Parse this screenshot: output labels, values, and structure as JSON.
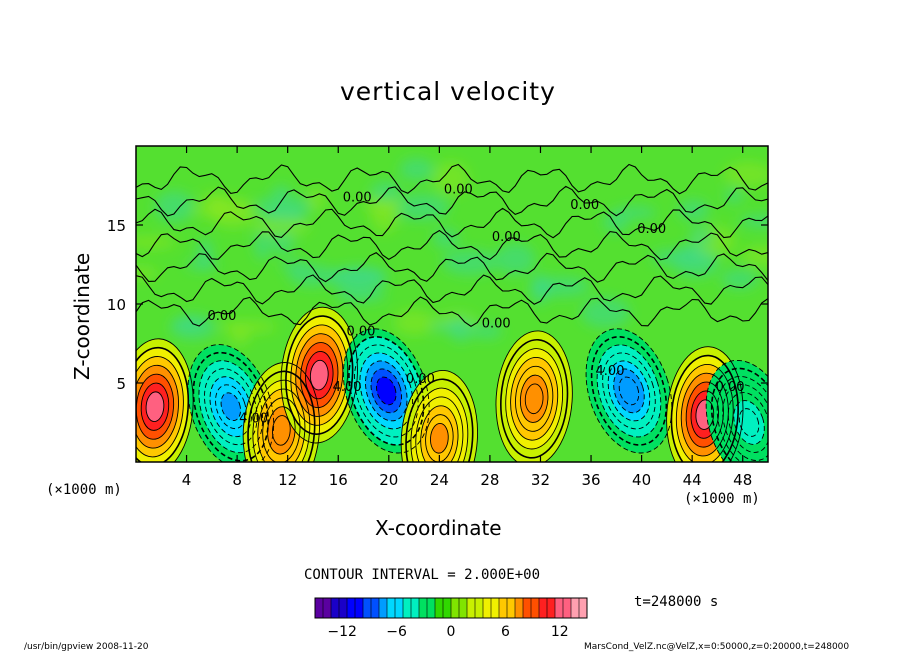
{
  "chart_data": {
    "type": "heatmap",
    "title": "vertical velocity",
    "xlabel": "X-coordinate",
    "ylabel": "Z-coordinate",
    "x_unit": "(×1000 m)",
    "x_unit_right": "(×1000 m)",
    "xlim": [
      0,
      50
    ],
    "ylim": [
      0,
      20
    ],
    "x_ticks": [
      4,
      8,
      12,
      16,
      20,
      24,
      28,
      32,
      36,
      40,
      44,
      48
    ],
    "y_ticks": [
      5,
      10,
      15
    ],
    "contour_interval_text": "CONTOUR INTERVAL = 2.000E+00",
    "time_text": "t=248000 s",
    "colorbar": {
      "range": [
        -15,
        15
      ],
      "ticks": [
        -12,
        -6,
        0,
        6,
        12
      ],
      "tick_labels": [
        "−12",
        "−6",
        "0",
        "6",
        "12"
      ],
      "colors": [
        "#5a00a0",
        "#1a00c8",
        "#0000ff",
        "#0050ff",
        "#009cff",
        "#00d8ff",
        "#00f0c0",
        "#00e060",
        "#30d800",
        "#80e400",
        "#c8f000",
        "#f0f000",
        "#ffc800",
        "#ff9000",
        "#ff5000",
        "#ff2020",
        "#ff6080",
        "#ffa0b0"
      ]
    },
    "features": [
      {
        "type": "updraft",
        "x": 1.5,
        "z": 3.5,
        "peak": 12
      },
      {
        "type": "downdraft",
        "x": 7.5,
        "z": 3.5,
        "peak": -7
      },
      {
        "type": "updraft",
        "x": 11.5,
        "z": 2,
        "peak": 8
      },
      {
        "type": "updraft",
        "x": 14.5,
        "z": 5.5,
        "peak": 12
      },
      {
        "type": "downdraft",
        "x": 19.8,
        "z": 4.5,
        "peak": -11
      },
      {
        "type": "updraft",
        "x": 24,
        "z": 1.5,
        "peak": 7
      },
      {
        "type": "updraft",
        "x": 31.5,
        "z": 4,
        "peak": 8
      },
      {
        "type": "downdraft",
        "x": 39,
        "z": 4.5,
        "peak": -8
      },
      {
        "type": "updraft",
        "x": 45,
        "z": 3,
        "peak": 13
      },
      {
        "type": "downdraft",
        "x": 48.5,
        "z": 2.5,
        "peak": -4
      }
    ],
    "contour_labels": [
      {
        "text": "0.00",
        "x": 17.5,
        "z": 16.5
      },
      {
        "text": "0.00",
        "x": 25.5,
        "z": 17
      },
      {
        "text": "0.00",
        "x": 35.5,
        "z": 16
      },
      {
        "text": "0.00",
        "x": 40.8,
        "z": 14.5
      },
      {
        "text": "0.00",
        "x": 29.3,
        "z": 14
      },
      {
        "text": "4.00",
        "x": 37.5,
        "z": 5.5
      },
      {
        "text": "4.00",
        "x": 16.7,
        "z": 4.5
      },
      {
        "text": "4.00",
        "x": 9.3,
        "z": 2.5
      },
      {
        "text": "0.00",
        "x": 17.8,
        "z": 8
      },
      {
        "text": "0.00",
        "x": 6.8,
        "z": 9
      },
      {
        "text": "0.00",
        "x": 22.5,
        "z": 5
      },
      {
        "text": "0.00",
        "x": 47,
        "z": 4.5
      },
      {
        "text": "0.00",
        "x": 28.5,
        "z": 8.5
      }
    ]
  },
  "footer": {
    "left": "/usr/bin/gpview   2008-11-20",
    "right": "MarsCond_VelZ.nc@VelZ,x=0:50000,z=0:20000,t=248000"
  }
}
